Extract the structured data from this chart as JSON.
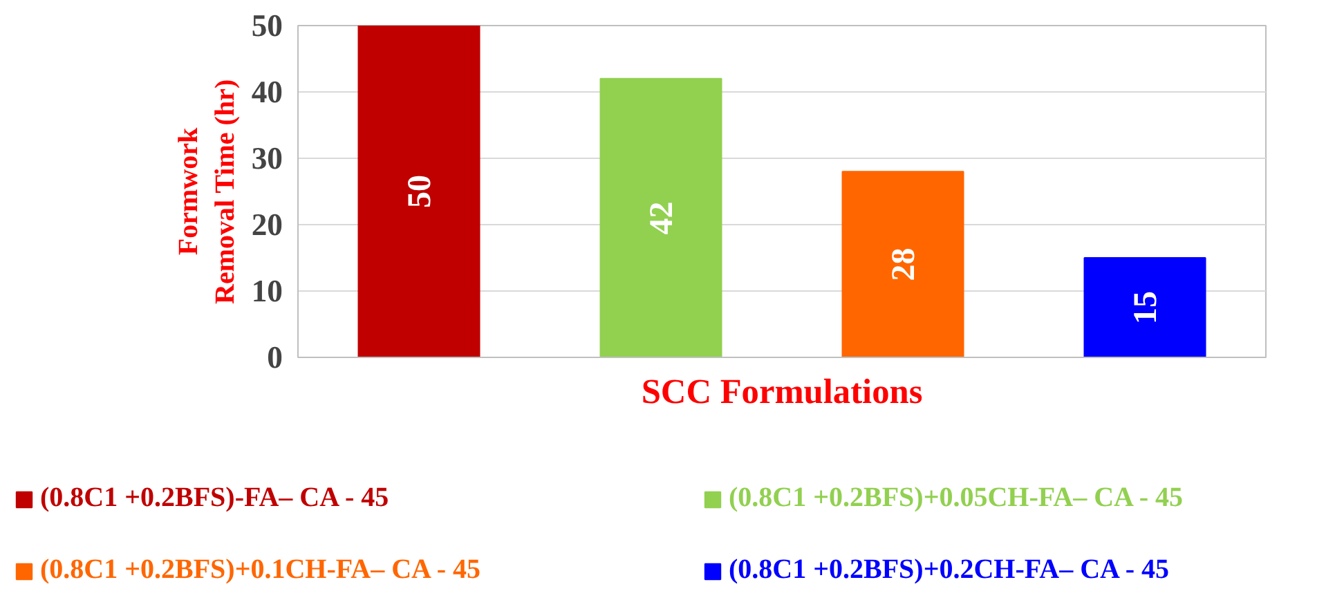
{
  "chart_data": {
    "type": "bar",
    "xlabel": "SCC Formulations",
    "ylabel": "Formwork\nRemoval Time (hr)",
    "categories": [
      null,
      null,
      null,
      null
    ],
    "series": [
      {
        "name": "(0.8C1 +0.2BFS)-FA– CA - 45",
        "color": "#c00000",
        "values": [
          50,
          null,
          null,
          null
        ]
      },
      {
        "name": "(0.8C1 +0.2BFS)+0.05CH-FA– CA - 45",
        "color": "#92d050",
        "values": [
          null,
          42,
          null,
          null
        ]
      },
      {
        "name": "(0.8C1 +0.2BFS)+0.1CH-FA– CA - 45",
        "color": "#ff6600",
        "values": [
          null,
          null,
          28,
          null
        ]
      },
      {
        "name": "(0.8C1 +0.2BFS)+0.2CH-FA– CA - 45",
        "color": "#0000ff",
        "values": [
          null,
          null,
          null,
          15
        ]
      }
    ],
    "ylim": [
      0,
      50
    ],
    "yticks": [
      0,
      10,
      20,
      30,
      40,
      50
    ],
    "grid": "y",
    "legend": "bottom",
    "data_labels": true,
    "tick_labels": "y"
  }
}
